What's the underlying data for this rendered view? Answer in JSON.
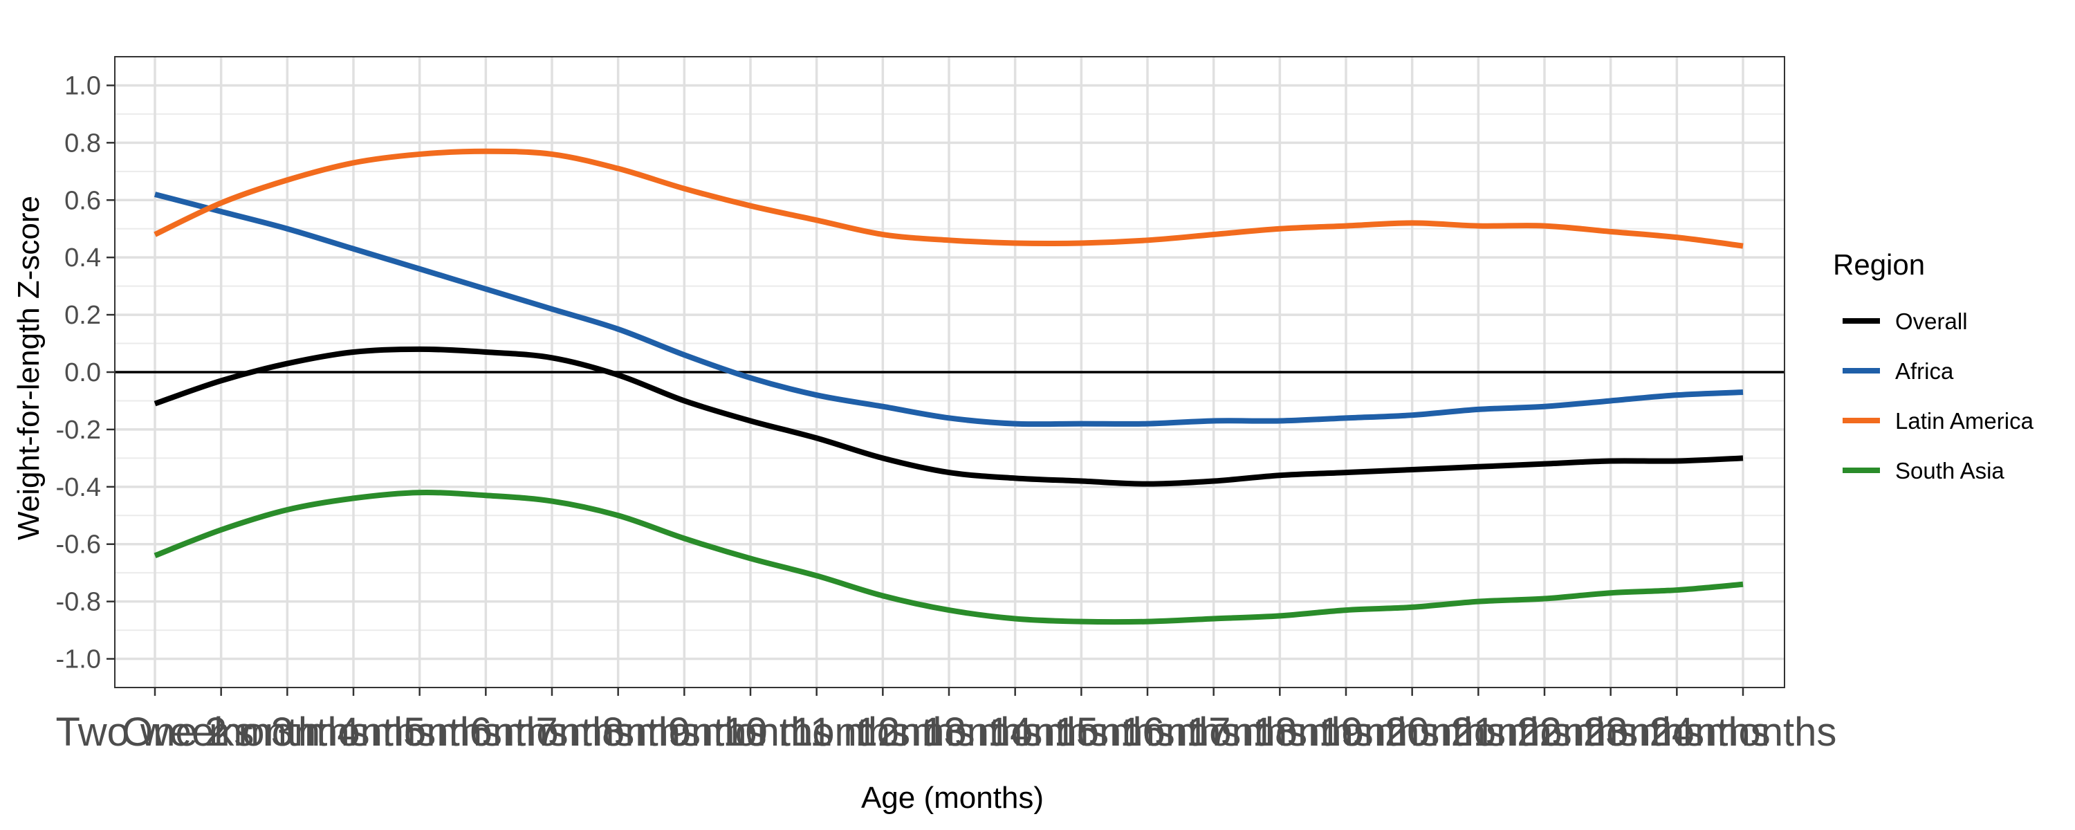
{
  "chart_data": {
    "type": "line",
    "xlabel": "Age (months)",
    "ylabel": "Weight-for-length Z-score",
    "ylim": [
      -1.1,
      1.1
    ],
    "yticks": [
      -1.0,
      -0.8,
      -0.6,
      -0.4,
      -0.2,
      0.0,
      0.2,
      0.4,
      0.6,
      0.8,
      1.0
    ],
    "ytick_labels": [
      "-1.0",
      "-0.8",
      "-0.6",
      "-0.4",
      "-0.2",
      "0.0",
      "0.2",
      "0.4",
      "0.6",
      "0.8",
      "1.0"
    ],
    "categories": [
      "Two weeks",
      "One month",
      "2 months",
      "3 months",
      "4 months",
      "5 months",
      "6 months",
      "7 months",
      "8 months",
      "9 months",
      "10 months",
      "11 months",
      "12 months",
      "13 months",
      "14 months",
      "15 months",
      "16 months",
      "17 months",
      "18 months",
      "19 months",
      "20 months",
      "21 months",
      "22 months",
      "23 months",
      "24 months"
    ],
    "reference_line": 0.0,
    "grid": true,
    "legend": {
      "title": "Region",
      "position": "right"
    },
    "series": [
      {
        "name": "Overall",
        "color": "#000000",
        "values": [
          -0.11,
          -0.03,
          0.03,
          0.07,
          0.08,
          0.07,
          0.05,
          -0.01,
          -0.1,
          -0.17,
          -0.23,
          -0.3,
          -0.35,
          -0.37,
          -0.38,
          -0.39,
          -0.38,
          -0.36,
          -0.35,
          -0.34,
          -0.33,
          -0.32,
          -0.31,
          -0.31,
          -0.3
        ]
      },
      {
        "name": "Africa",
        "color": "#1f5fa8",
        "values": [
          0.62,
          0.56,
          0.5,
          0.43,
          0.36,
          0.29,
          0.22,
          0.15,
          0.06,
          -0.02,
          -0.08,
          -0.12,
          -0.16,
          -0.18,
          -0.18,
          -0.18,
          -0.17,
          -0.17,
          -0.16,
          -0.15,
          -0.13,
          -0.12,
          -0.1,
          -0.08,
          -0.07
        ]
      },
      {
        "name": "Latin America",
        "color": "#f26b1d",
        "values": [
          0.48,
          0.59,
          0.67,
          0.73,
          0.76,
          0.77,
          0.76,
          0.71,
          0.64,
          0.58,
          0.53,
          0.48,
          0.46,
          0.45,
          0.45,
          0.46,
          0.48,
          0.5,
          0.51,
          0.52,
          0.51,
          0.51,
          0.49,
          0.47,
          0.44
        ]
      },
      {
        "name": "South Asia",
        "color": "#2a8c2a",
        "values": [
          -0.64,
          -0.55,
          -0.48,
          -0.44,
          -0.42,
          -0.43,
          -0.45,
          -0.5,
          -0.58,
          -0.65,
          -0.71,
          -0.78,
          -0.83,
          -0.86,
          -0.87,
          -0.87,
          -0.86,
          -0.85,
          -0.83,
          -0.82,
          -0.8,
          -0.79,
          -0.77,
          -0.76,
          -0.74
        ]
      }
    ]
  }
}
